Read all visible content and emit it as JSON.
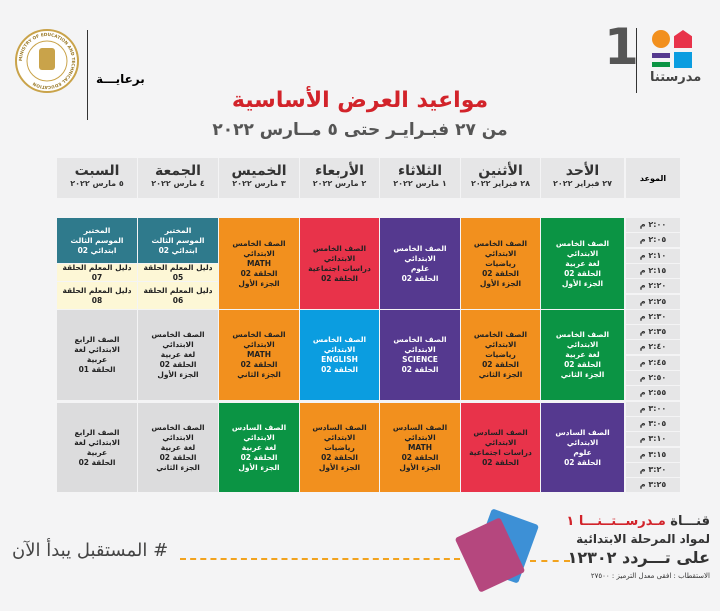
{
  "header": {
    "sponsor_label": "برعايـــة",
    "brand_name": "مدرستنا",
    "brand_number": "1",
    "ministry_seal_text": "MINISTRY OF EDUCATION AND TECHNICAL EDUCATION"
  },
  "title": "مواعيد العرض الأساسية",
  "subtitle": "من ٢٧ فبـرايـر حتى ٥ مــارس ٢٠٢٢",
  "time_header": "الموعد",
  "days": [
    {
      "name": "الأحد",
      "date": "٢٧ فبراير ٢٠٢٢"
    },
    {
      "name": "الأثنين",
      "date": "٢٨ فبراير ٢٠٢٢"
    },
    {
      "name": "الثلاثاء",
      "date": "١ مارس ٢٠٢٢"
    },
    {
      "name": "الأربعاء",
      "date": "٢ مارس ٢٠٢٢"
    },
    {
      "name": "الخميس",
      "date": "٣ مارس ٢٠٢٢"
    },
    {
      "name": "الجمعة",
      "date": "٤ مارس ٢٠٢٢"
    },
    {
      "name": "السبت",
      "date": "٥ مارس ٢٠٢٢"
    }
  ],
  "times": [
    "٢:٠٠ م",
    "٢:٠٥ م",
    "٢:١٠ م",
    "٢:١٥ م",
    "٢:٢٠ م",
    "٢:٢٥ م",
    "٢:٣٠ م",
    "٢:٣٥ م",
    "٢:٤٠ م",
    "٢:٤٥ م",
    "٢:٥٠ م",
    "٢:٥٥ م",
    "٣:٠٠ م",
    "٣:٠٥ م",
    "٣:١٠ م",
    "٣:١٥ م",
    "٣:٢٠ م",
    "٣:٢٥ م"
  ],
  "colors": {
    "green": "#0b9444",
    "orange": "#f2901e",
    "purple": "#55398f",
    "red": "#e8334a",
    "blue": "#0b9de0",
    "teal": "#2f7a8c",
    "yellow": "#fdf7d6",
    "gray": "#dcdcdd"
  },
  "schedule": [
    [
      {
        "day": 0,
        "color": "green",
        "lines": [
          "الصف الخامس الابتدائي",
          "لغة عربية",
          "الحلقة 02",
          "الجزء الأول"
        ]
      },
      {
        "day": 1,
        "color": "orange",
        "lines": [
          "الصف الخامس الابتدائي",
          "رياضيات",
          "الحلقة 02",
          "الجزء الأول"
        ]
      },
      {
        "day": 2,
        "color": "purple",
        "lines": [
          "الصف الخامس الابتدائي",
          "علوم",
          "الحلقة 02"
        ]
      },
      {
        "day": 3,
        "color": "red",
        "lines": [
          "الصف الخامس الابتدائي",
          "دراسات اجتماعية",
          "الحلقة 02"
        ]
      },
      {
        "day": 4,
        "color": "orange",
        "lines": [
          "الصف الخامس الابتدائي",
          "MATH",
          "الحلقة 02",
          "الجزء الأول"
        ]
      },
      {
        "day": 5,
        "color": "teal",
        "part": "top",
        "lines": [
          "المختبر",
          "الموسم الثالث",
          "ابتدائي 02"
        ]
      },
      {
        "day": 5,
        "color": "yellow",
        "part": "mid",
        "lines": [
          "دليل المعلم الحلقة 05"
        ]
      },
      {
        "day": 5,
        "color": "yellow",
        "part": "bot",
        "lines": [
          "دليل المعلم الحلقة 06"
        ]
      },
      {
        "day": 6,
        "color": "teal",
        "part": "top",
        "lines": [
          "المختبر",
          "الموسم الثالث",
          "ابتدائي 02"
        ]
      },
      {
        "day": 6,
        "color": "yellow",
        "part": "mid",
        "lines": [
          "دليل المعلم الحلقة 07"
        ]
      },
      {
        "day": 6,
        "color": "yellow",
        "part": "bot",
        "lines": [
          "دليل المعلم الحلقة 08"
        ]
      }
    ],
    [
      {
        "day": 0,
        "color": "green",
        "lines": [
          "الصف الخامس الابتدائي",
          "لغة عربية",
          "الحلقة 02",
          "الجزء الثاني"
        ]
      },
      {
        "day": 1,
        "color": "orange",
        "lines": [
          "الصف الخامس الابتدائي",
          "رياضيات",
          "الحلقة 02",
          "الجزء الثاني"
        ]
      },
      {
        "day": 2,
        "color": "purple",
        "lines": [
          "الصف الخامس الابتدائي",
          "SCIENCE",
          "الحلقة 02"
        ]
      },
      {
        "day": 3,
        "color": "blue",
        "lines": [
          "الصف الخامس الابتدائي",
          "ENGLISH",
          "الحلقة 02"
        ]
      },
      {
        "day": 4,
        "color": "orange",
        "lines": [
          "الصف الخامس الابتدائي",
          "MATH",
          "الحلقة 02",
          "الجزء الثاني"
        ]
      },
      {
        "day": 5,
        "color": "gray",
        "lines": [
          "الصف الخامس الابتدائي",
          "لغة عربية",
          "الحلقة 02",
          "الجزء الأول"
        ]
      },
      {
        "day": 6,
        "color": "gray",
        "lines": [
          "الصف الرابع الابتدائي لغة",
          "عربية",
          "الحلقة 01"
        ]
      }
    ],
    [
      {
        "day": 0,
        "color": "purple",
        "lines": [
          "الصف السادس الابتدائي",
          "علوم",
          "الحلقة 02"
        ]
      },
      {
        "day": 1,
        "color": "red",
        "lines": [
          "الصف السادس الابتدائي",
          "دراسات اجتماعية",
          "الحلقة 02"
        ]
      },
      {
        "day": 2,
        "color": "orange",
        "lines": [
          "الصف السادس الابتدائي",
          "MATH",
          "الحلقة 02",
          "الجزء الأول"
        ]
      },
      {
        "day": 3,
        "color": "orange",
        "lines": [
          "الصف السادس الابتدائي",
          "رياضيات",
          "الحلقة 02",
          "الجزء الأول"
        ]
      },
      {
        "day": 4,
        "color": "green",
        "lines": [
          "الصف السادس الابتدائي",
          "لغة عربية",
          "الحلقة 02",
          "الجزء الأول"
        ]
      },
      {
        "day": 5,
        "color": "gray",
        "lines": [
          "الصف الخامس الابتدائي",
          "لغة عربية",
          "الحلقة 02",
          "الجزء الثاني"
        ]
      },
      {
        "day": 6,
        "color": "gray",
        "lines": [
          "الصف الرابع الابتدائي لغة",
          "عربية",
          "الحلقة 02"
        ]
      }
    ]
  ],
  "footer": {
    "hashtag": "# المستقبل يبدأ الآن",
    "channel_prefix": "قنـــاة",
    "channel_name": "مـدرســتــنـــا ١",
    "line2": "لمواد المرحلة الابتدائية",
    "line3": "على تـــردد ١٢٣٠٢",
    "line4": "الاستقطاب : افقى معدل الترميز : ٢٧٥٠٠"
  }
}
